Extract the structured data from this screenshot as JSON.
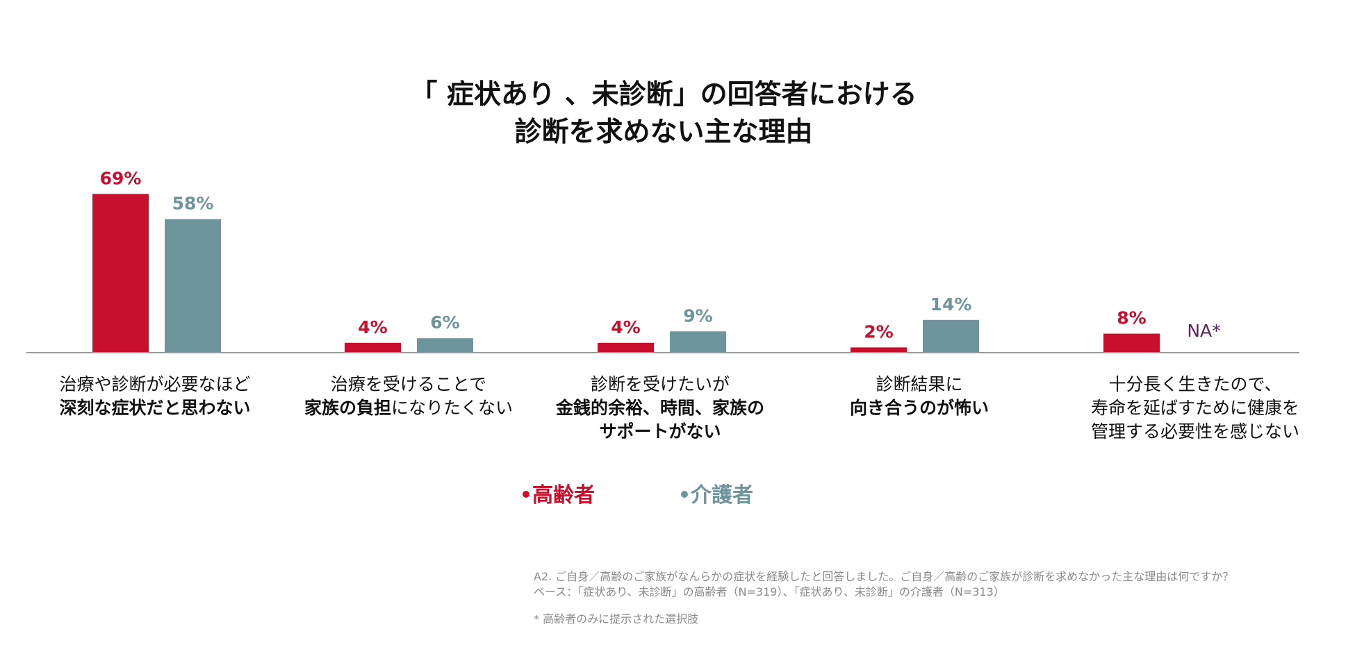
{
  "title": {
    "line1": "「 症状あり 、未診断」の回答者における",
    "line2": "診断を求めない主な理由"
  },
  "colors": {
    "senior": "#c8102e",
    "caregiver": "#6e949c",
    "axis": "#9a9a9a",
    "na": "#5a2a5a"
  },
  "chart_data": {
    "type": "bar",
    "title": "「 症状あり 、未診断」の回答者における 診断を求めない主な理由",
    "ylim": [
      0,
      70
    ],
    "categories": [
      "治療や診断が必要なほど深刻な症状だと思わない",
      "治療を受けることで家族の負担になりたくない",
      "診断を受けたいが金銭的余裕、時間、家族のサポートがない",
      "診断結果に向き合うのが怖い",
      "十分長く生きたので、寿命を延ばすために健康を管理する必要性を感じない"
    ],
    "series": [
      {
        "name": "高齢者",
        "values": [
          69,
          4,
          4,
          2,
          8
        ],
        "labels": [
          "69%",
          "4%",
          "4%",
          "2%",
          "8%"
        ]
      },
      {
        "name": "介護者",
        "values": [
          58,
          6,
          9,
          14,
          null
        ],
        "labels": [
          "58%",
          "6%",
          "9%",
          "14%",
          "NA*"
        ]
      }
    ]
  },
  "category_labels": [
    {
      "lines": [
        [
          {
            "t": "治療や診断が必要なほど",
            "b": false
          }
        ],
        [
          {
            "t": "深刻な症状だと思わない",
            "b": true
          }
        ]
      ]
    },
    {
      "lines": [
        [
          {
            "t": "治療を受けることで",
            "b": false
          }
        ],
        [
          {
            "t": "家族の負担",
            "b": true
          },
          {
            "t": "になりたくない",
            "b": false
          }
        ]
      ]
    },
    {
      "lines": [
        [
          {
            "t": "診断を受けたいが",
            "b": false
          }
        ],
        [
          {
            "t": "金銭的余裕、時間、家族の",
            "b": true
          }
        ],
        [
          {
            "t": "サポートがない",
            "b": true
          }
        ]
      ]
    },
    {
      "lines": [
        [
          {
            "t": "診断結果に",
            "b": false
          }
        ],
        [
          {
            "t": "向き合うのが怖い",
            "b": true
          }
        ]
      ]
    },
    {
      "lines": [
        [
          {
            "t": "十分長く生きたので、",
            "b": false
          }
        ],
        [
          {
            "t": "寿命を延ばすために健康を",
            "b": false
          }
        ],
        [
          {
            "t": "管理する必要性を感じない",
            "b": false
          }
        ]
      ]
    }
  ],
  "legend": {
    "senior": "高齢者",
    "caregiver": "介護者"
  },
  "footnotes": {
    "question": "A2. ご自身／高齢のご家族がなんらかの症状を経験したと回答しました。ご自身／高齢のご家族が診断を求めなかった主な理由は何ですか？",
    "base": "ベース：「症状あり、未診断」の高齢者（N=319）、「症状あり、未診断」の介護者（N=313）",
    "note": "* 高齢者のみに提示された選択肢"
  }
}
